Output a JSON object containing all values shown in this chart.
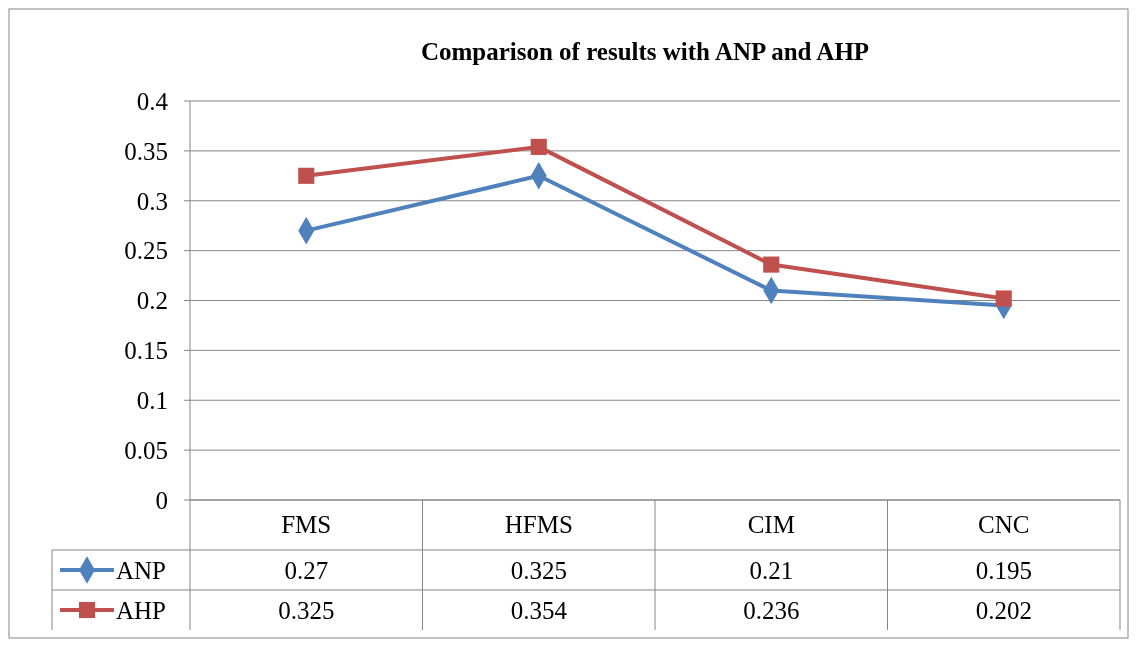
{
  "chart_data": {
    "type": "line",
    "title": "Comparison of results with ANP and AHP",
    "categories": [
      "FMS",
      "HFMS",
      "CIM",
      "CNC"
    ],
    "series": [
      {
        "name": "ANP",
        "color": "#4f81bd",
        "marker": "diamond",
        "values": [
          0.27,
          0.325,
          0.21,
          0.195
        ]
      },
      {
        "name": "AHP",
        "color": "#c0504d",
        "marker": "square",
        "values": [
          0.325,
          0.354,
          0.236,
          0.202
        ]
      }
    ],
    "ylim": [
      0,
      0.4
    ],
    "yticks": [
      0,
      0.05,
      0.1,
      0.15,
      0.2,
      0.25,
      0.3,
      0.35,
      0.4
    ],
    "grid": "y",
    "legend": "bottom",
    "data_labels": true
  }
}
